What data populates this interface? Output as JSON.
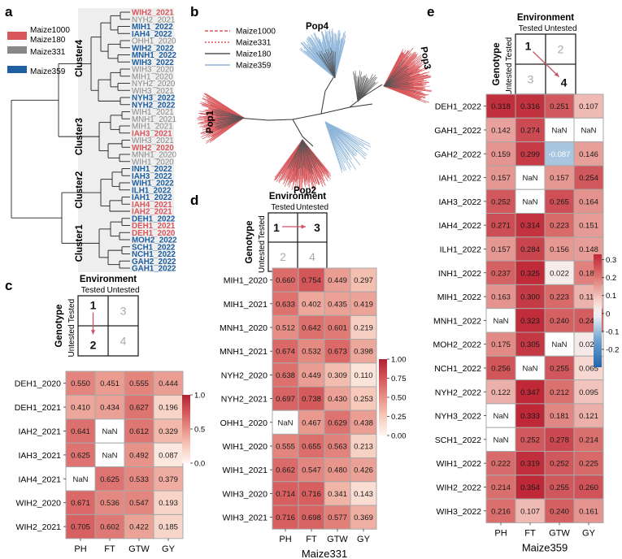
{
  "panels": {
    "a": {
      "letter": "a",
      "legend": [
        {
          "label": "Maize1000",
          "color": "#d9575b"
        },
        {
          "label": "Maize180",
          "color": "#d9575b"
        },
        {
          "label": "Maize331",
          "color": "#888888"
        },
        {
          "label": "Maize359",
          "color": "#1d5fa0"
        }
      ],
      "clusters": [
        "Cluster4",
        "Cluster3",
        "Cluster2",
        "Cluster1"
      ],
      "leaves": [
        {
          "label": "WIH2_2021",
          "color": "#d9575b"
        },
        {
          "label": "NYH2_2021",
          "color": "#888888"
        },
        {
          "label": "MIH1_2022",
          "color": "#1d5fa0"
        },
        {
          "label": "IAH4_2022",
          "color": "#1d5fa0"
        },
        {
          "label": "OHH1_2020",
          "color": "#888888"
        },
        {
          "label": "WIH2_2022",
          "color": "#1d5fa0"
        },
        {
          "label": "MNH1_2022",
          "color": "#1d5fa0"
        },
        {
          "label": "WIH3_2022",
          "color": "#1d5fa0"
        },
        {
          "label": "WIH3_2020",
          "color": "#888888"
        },
        {
          "label": "MIH1_2020",
          "color": "#888888"
        },
        {
          "label": "NYH2_2020",
          "color": "#888888"
        },
        {
          "label": "WIH3_2021",
          "color": "#888888"
        },
        {
          "label": "NYH3_2022",
          "color": "#1d5fa0"
        },
        {
          "label": "NYH2_2022",
          "color": "#1d5fa0"
        },
        {
          "label": "WIH1_2021",
          "color": "#888888"
        },
        {
          "label": "MNH1_2021",
          "color": "#888888"
        },
        {
          "label": "MIH1_2021",
          "color": "#888888"
        },
        {
          "label": "IAH3_2021",
          "color": "#d9575b"
        },
        {
          "label": "WIH3_2021",
          "color": "#888888"
        },
        {
          "label": "WIH2_2020",
          "color": "#d9575b"
        },
        {
          "label": "MNH1_2020",
          "color": "#888888"
        },
        {
          "label": "WIH1_2020",
          "color": "#888888"
        },
        {
          "label": "INH1_2022",
          "color": "#1d5fa0"
        },
        {
          "label": "IAH3_2022",
          "color": "#1d5fa0"
        },
        {
          "label": "WIH1_2022",
          "color": "#1d5fa0"
        },
        {
          "label": "ILH1_2022",
          "color": "#1d5fa0"
        },
        {
          "label": "IAH1_2022",
          "color": "#1d5fa0"
        },
        {
          "label": "IAH4_2021",
          "color": "#d9575b"
        },
        {
          "label": "IAH2_2021",
          "color": "#d9575b"
        },
        {
          "label": "DEH1_2022",
          "color": "#1d5fa0"
        },
        {
          "label": "DEH1_2021",
          "color": "#d9575b"
        },
        {
          "label": "DEH1_2020",
          "color": "#d9575b"
        },
        {
          "label": "MOH2_2022",
          "color": "#1d5fa0"
        },
        {
          "label": "SCH1_2022",
          "color": "#1d5fa0"
        },
        {
          "label": "NCH1_2022",
          "color": "#1d5fa0"
        },
        {
          "label": "GAH2_2022",
          "color": "#1d5fa0"
        },
        {
          "label": "GAH1_2022",
          "color": "#1d5fa0"
        }
      ]
    },
    "b": {
      "letter": "b",
      "legend": [
        {
          "label": "Maize1000",
          "color": "#d9575b",
          "style": "dashed"
        },
        {
          "label": "Maize331",
          "color": "#d9575b",
          "style": "dotted"
        },
        {
          "label": "Maize180",
          "color": "#555555",
          "style": "solid"
        },
        {
          "label": "Maize359",
          "color": "#8db4d9",
          "style": "solid"
        }
      ],
      "pops": [
        "Pop1",
        "Pop2",
        "Pop3",
        "Pop4"
      ]
    },
    "c": {
      "letter": "c",
      "tested_cell": "1",
      "untested_env_cell": "3",
      "untested_geno_cell": "2",
      "untested_both_cell": "4"
    },
    "d": {
      "letter": "d",
      "tested_cell": "1",
      "untested_env_cell": "3",
      "untested_geno_cell": "2",
      "untested_both_cell": "4"
    },
    "e": {
      "letter": "e",
      "tested_cell": "1",
      "untested_env_cell": "2",
      "untested_geno_cell": "3",
      "untested_both_cell": "4"
    }
  },
  "schematic_labels": {
    "environment": "Environment",
    "genotype": "Genotype",
    "tested": "Tested",
    "untested": "Untested"
  },
  "chart_data": [
    {
      "type": "heatmap",
      "panel": "c",
      "xlabel": "Maize180",
      "columns": [
        "PH",
        "FT",
        "GTW",
        "GY"
      ],
      "rows": [
        "DEH1_2020",
        "DEH1_2021",
        "IAH2_2021",
        "IAH3_2021",
        "IAH4_2021",
        "WIH2_2020",
        "WIH2_2021"
      ],
      "values": [
        [
          0.55,
          0.451,
          0.555,
          0.444
        ],
        [
          0.41,
          0.434,
          0.627,
          0.196
        ],
        [
          0.641,
          null,
          0.612,
          0.329
        ],
        [
          0.625,
          null,
          0.492,
          0.087
        ],
        [
          null,
          0.625,
          0.533,
          0.379
        ],
        [
          0.671,
          0.536,
          0.547,
          0.193
        ],
        [
          0.705,
          0.602,
          0.422,
          0.185
        ]
      ],
      "colorbar": {
        "min": 0.0,
        "max": 1.0,
        "ticks": [
          "1.0",
          "0.5",
          "0.0"
        ]
      }
    },
    {
      "type": "heatmap",
      "panel": "d",
      "xlabel": "Maize331",
      "columns": [
        "PH",
        "FT",
        "GTW",
        "GY"
      ],
      "rows": [
        "MIH1_2020",
        "MIH1_2021",
        "MNH1_2020",
        "MNH1_2021",
        "NYH2_2020",
        "NYH2_2021",
        "OHH1_2020",
        "WIH1_2020",
        "WIH1_2021",
        "WIH3_2020",
        "WIH3_2021"
      ],
      "values": [
        [
          0.66,
          0.754,
          0.449,
          0.297
        ],
        [
          0.633,
          0.402,
          0.435,
          0.419
        ],
        [
          0.512,
          0.642,
          0.601,
          0.219
        ],
        [
          0.674,
          0.532,
          0.673,
          0.398
        ],
        [
          0.638,
          0.449,
          0.309,
          0.11
        ],
        [
          0.697,
          0.738,
          0.43,
          0.253
        ],
        [
          null,
          0.467,
          0.629,
          0.438
        ],
        [
          0.555,
          0.655,
          0.563,
          0.213
        ],
        [
          0.662,
          0.547,
          0.48,
          0.426
        ],
        [
          0.714,
          0.716,
          0.341,
          0.143
        ],
        [
          0.716,
          0.698,
          0.577,
          0.369
        ]
      ],
      "colorbar": {
        "min": 0.0,
        "max": 1.0,
        "ticks": [
          "1.00",
          "0.75",
          "0.50",
          "0.25",
          "0.00"
        ]
      }
    },
    {
      "type": "heatmap",
      "panel": "e",
      "xlabel": "Maize359",
      "columns": [
        "PH",
        "FT",
        "GTW",
        "GY"
      ],
      "rows": [
        "DEH1_2022",
        "GAH1_2022",
        "GAH2_2022",
        "IAH1_2022",
        "IAH3_2022",
        "IAH4_2022",
        "ILH1_2022",
        "INH1_2022",
        "MIH1_2022",
        "MNH1_2022",
        "MOH2_2022",
        "NCH1_2022",
        "NYH2_2022",
        "NYH3_2022",
        "SCH1_2022",
        "WIH1_2022",
        "WIH2_2022",
        "WIH3_2022"
      ],
      "values": [
        [
          0.318,
          0.316,
          0.251,
          0.107
        ],
        [
          0.142,
          0.274,
          null,
          null
        ],
        [
          0.159,
          0.299,
          -0.087,
          0.146
        ],
        [
          0.157,
          null,
          0.157,
          0.254
        ],
        [
          0.252,
          null,
          0.265,
          0.164
        ],
        [
          0.271,
          0.314,
          0.223,
          0.151
        ],
        [
          0.157,
          0.284,
          0.156,
          0.148
        ],
        [
          0.237,
          0.325,
          0.022,
          0.188
        ],
        [
          0.163,
          0.3,
          0.223,
          0.119
        ],
        [
          null,
          0.323,
          0.24,
          0.244
        ],
        [
          0.175,
          0.305,
          null,
          0.025
        ],
        [
          0.256,
          null,
          0.255,
          0.065
        ],
        [
          0.122,
          0.347,
          0.212,
          0.095
        ],
        [
          null,
          0.333,
          0.181,
          0.121
        ],
        [
          null,
          0.252,
          0.278,
          0.214
        ],
        [
          0.222,
          0.319,
          0.252,
          0.225
        ],
        [
          0.214,
          0.354,
          0.255,
          0.26
        ],
        [
          0.216,
          0.107,
          0.24,
          0.161
        ]
      ],
      "colorbar": {
        "min": -0.3,
        "max": 0.33,
        "ticks": [
          "0.3",
          "0.2",
          "0.1",
          "0",
          "-0.1",
          "-0.2"
        ]
      }
    }
  ]
}
